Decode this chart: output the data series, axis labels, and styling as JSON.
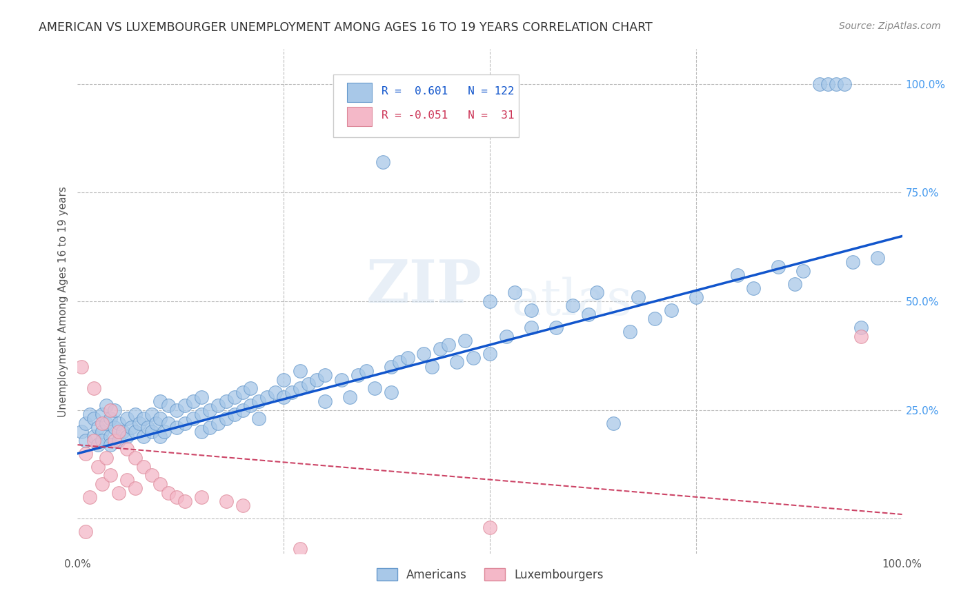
{
  "title": "AMERICAN VS LUXEMBOURGER UNEMPLOYMENT AMONG AGES 16 TO 19 YEARS CORRELATION CHART",
  "source": "Source: ZipAtlas.com",
  "ylabel": "Unemployment Among Ages 16 to 19 years",
  "xlim": [
    0.0,
    1.0
  ],
  "ylim": [
    -0.08,
    1.08
  ],
  "american_color": "#a8c8e8",
  "american_edge_color": "#6699cc",
  "luxembourger_color": "#f4b8c8",
  "luxembourger_edge_color": "#dd8899",
  "american_line_color": "#1155cc",
  "luxembourger_line_color": "#cc4466",
  "R_american": "0.601",
  "N_american": "122",
  "R_luxembourger": "-0.051",
  "N_luxembourger": "31",
  "legend_label_american": "Americans",
  "legend_label_luxembourger": "Luxembourgers",
  "watermark_zip": "ZIP",
  "watermark_atlas": "atlas",
  "background_color": "#ffffff",
  "grid_color": "#bbbbbb",
  "title_color": "#333333",
  "source_color": "#888888",
  "ylabel_color": "#555555",
  "right_tick_color": "#4499ee",
  "bottom_tick_color": "#555555"
}
